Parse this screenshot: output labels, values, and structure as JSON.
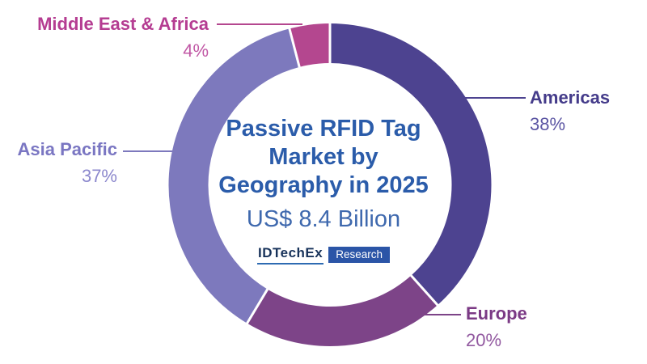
{
  "title": {
    "line1": "Passive RFID Tag",
    "line2": "Market by",
    "line3": "Geography in 2025",
    "subtitle": "US$ 8.4 Billion"
  },
  "logo": {
    "brand": "IDTechEx",
    "tag": "Research",
    "brand_color": "#17325a",
    "tag_bg_color": "#2b55a7"
  },
  "chart_data": {
    "type": "pie",
    "donut": true,
    "title": "Passive RFID Tag Market by Geography in 2025",
    "subtitle": "US$ 8.4 Billion",
    "start_angle": "top",
    "direction": "clockwise",
    "unit": "%",
    "segments": [
      {
        "label": "Americas",
        "value": 38,
        "pct": "38%",
        "color": "#4d4390",
        "label_color": "#443b8a",
        "pct_color": "#5b55a3"
      },
      {
        "label": "Europe",
        "value": 20,
        "pct": "20%",
        "color": "#7d4488",
        "label_color": "#7b3a85",
        "pct_color": "#9259a0"
      },
      {
        "label": "Asia Pacific",
        "value": 37,
        "pct": "37%",
        "color": "#7d79bd",
        "label_color": "#7a76c2",
        "pct_color": "#8c88cd"
      },
      {
        "label": "Middle East & Africa",
        "value": 4,
        "pct": "4%",
        "color": "#b4478f",
        "label_color": "#b53d92",
        "pct_color": "#c158a5"
      }
    ],
    "title_color": "#2b5caa",
    "background": "#ffffff"
  }
}
